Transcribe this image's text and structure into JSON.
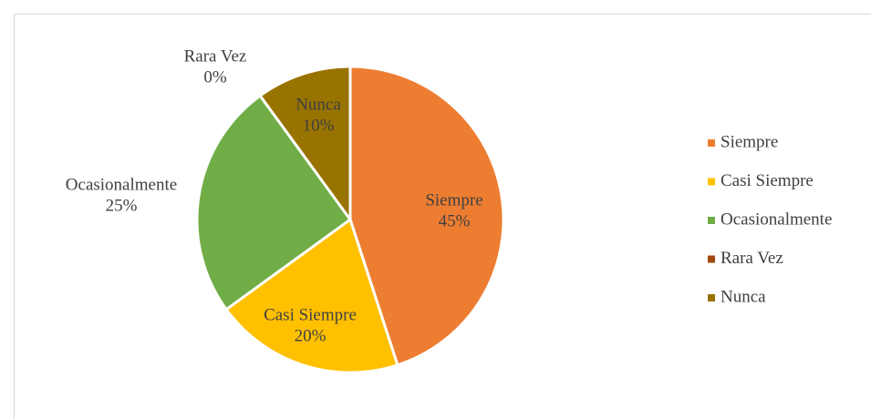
{
  "chart_data": {
    "type": "pie",
    "categories": [
      "Siempre",
      "Casi Siempre",
      "Ocasionalmente",
      "Rara Vez",
      "Nunca"
    ],
    "values": [
      45,
      20,
      25,
      0,
      10
    ],
    "value_labels": [
      "45%",
      "20%",
      "25%",
      "0%",
      "10%"
    ],
    "colors": [
      "#ED7D31",
      "#FFC000",
      "#70AD47",
      "#9E480E",
      "#997300"
    ],
    "legend": "right"
  }
}
